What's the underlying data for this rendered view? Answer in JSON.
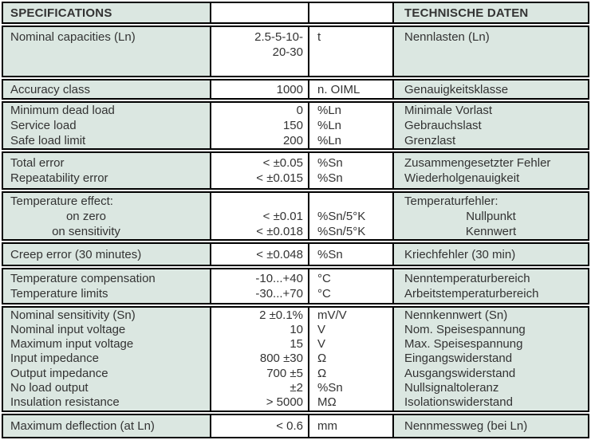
{
  "colors": {
    "cell_bg": "#dbe7e1",
    "value_bg": "#ffffff",
    "border": "#000000",
    "text": "#333333"
  },
  "table": {
    "header": {
      "en": "SPECIFICATIONS",
      "de": "TECHNISCHE DATEN"
    },
    "rows": [
      {
        "en": [
          "Nominal capacities (Ln)"
        ],
        "val": [
          "2.5-5-10-",
          "20-30"
        ],
        "unit": [
          "t"
        ],
        "de": [
          "Nennlasten (Ln)"
        ]
      },
      {
        "en": [
          "Accuracy class"
        ],
        "val": [
          "1000"
        ],
        "unit": [
          "n. OIML"
        ],
        "de": [
          "Genauigkeitsklasse"
        ]
      },
      {
        "en": [
          "Minimum dead load",
          "Service load",
          "Safe load limit"
        ],
        "val": [
          "0",
          "150",
          "200"
        ],
        "unit": [
          "%Ln",
          "%Ln",
          "%Ln"
        ],
        "de": [
          "Minimale Vorlast",
          "Gebrauchslast",
          "Grenzlast"
        ]
      },
      {
        "en": [
          "Total error",
          "Repeatability error"
        ],
        "val": [
          "< ±0.05",
          "< ±0.015"
        ],
        "unit": [
          "%Sn",
          "%Sn"
        ],
        "de": [
          "Zusammengesetzter Fehler",
          "Wiederholgenauigkeit"
        ]
      },
      {
        "en": [
          "Temperature effect:",
          "on zero",
          "on sensitivity"
        ],
        "val": [
          "",
          "< ±0.01",
          "< ±0.018"
        ],
        "unit": [
          "",
          "%Sn/5°K",
          "%Sn/5°K"
        ],
        "de": [
          "Temperaturfehler:",
          "Nullpunkt",
          "Kennwert"
        ]
      },
      {
        "en": [
          "Creep error (30 minutes)"
        ],
        "val": [
          "< ±0.048"
        ],
        "unit": [
          "%Sn"
        ],
        "de": [
          "Kriechfehler (30 min)"
        ]
      },
      {
        "en": [
          "Temperature compensation",
          "Temperature limits"
        ],
        "val": [
          "-10...+40",
          "-30...+70"
        ],
        "unit": [
          "°C",
          "°C"
        ],
        "de": [
          "Nenntemperaturbereich",
          "Arbeitstemperaturbereich"
        ]
      },
      {
        "en": [
          "Nominal sensitivity (Sn)",
          "Nominal input voltage",
          "Maximum input voltage",
          "Input impedance",
          "Output impedance",
          "No load output",
          "Insulation resistance"
        ],
        "val": [
          "2 ±0.1%",
          "10",
          "15",
          "800 ±30",
          "700 ±5",
          "±2",
          "> 5000"
        ],
        "unit": [
          "mV/V",
          "V",
          "V",
          "Ω",
          "Ω",
          "%Sn",
          "MΩ"
        ],
        "de": [
          "Nennkennwert (Sn)",
          "Nom. Speisespannung",
          "Max. Speisespannung",
          "Eingangswiderstand",
          "Ausgangswiderstand",
          "Nullsignaltoleranz",
          "Isolationswiderstand"
        ]
      },
      {
        "en": [
          "Maximum deflection (at Ln)"
        ],
        "val": [
          "< 0.6"
        ],
        "unit": [
          "mm"
        ],
        "de": [
          "Nennmessweg (bei Ln)"
        ]
      }
    ]
  }
}
